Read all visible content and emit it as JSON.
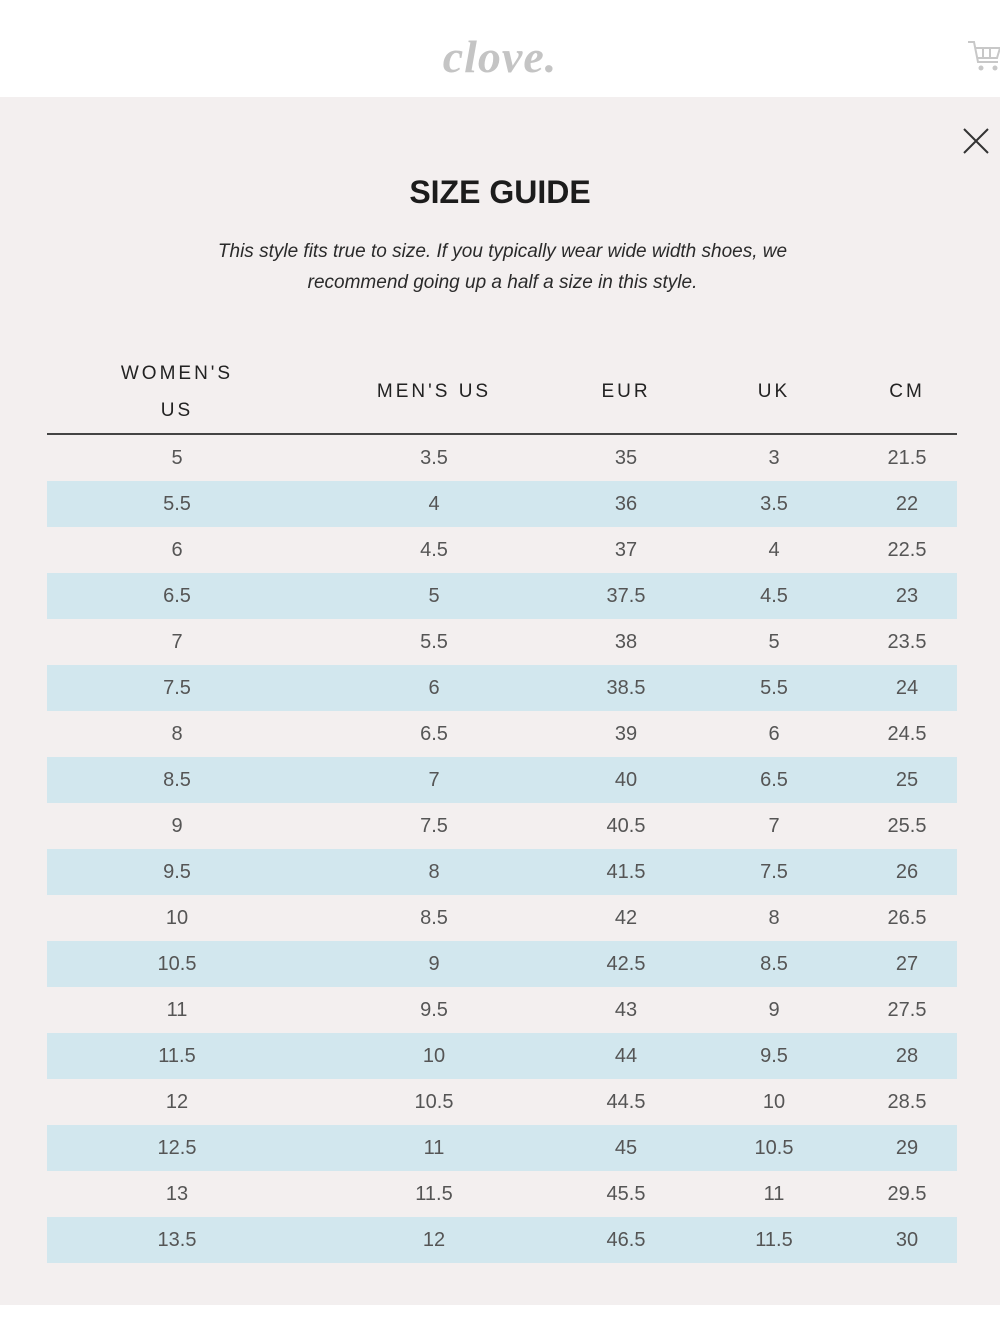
{
  "header": {
    "logo": "clove."
  },
  "modal": {
    "title": "SIZE GUIDE",
    "subtitle": "This style fits true to size. If you typically wear wide width shoes, we recommend going up a half a size in this style.",
    "table": {
      "columns": [
        "WOMEN'S US",
        "MEN'S US",
        "EUR",
        "UK",
        "CM"
      ],
      "rows": [
        [
          "5",
          "3.5",
          "35",
          "3",
          "21.5"
        ],
        [
          "5.5",
          "4",
          "36",
          "3.5",
          "22"
        ],
        [
          "6",
          "4.5",
          "37",
          "4",
          "22.5"
        ],
        [
          "6.5",
          "5",
          "37.5",
          "4.5",
          "23"
        ],
        [
          "7",
          "5.5",
          "38",
          "5",
          "23.5"
        ],
        [
          "7.5",
          "6",
          "38.5",
          "5.5",
          "24"
        ],
        [
          "8",
          "6.5",
          "39",
          "6",
          "24.5"
        ],
        [
          "8.5",
          "7",
          "40",
          "6.5",
          "25"
        ],
        [
          "9",
          "7.5",
          "40.5",
          "7",
          "25.5"
        ],
        [
          "9.5",
          "8",
          "41.5",
          "7.5",
          "26"
        ],
        [
          "10",
          "8.5",
          "42",
          "8",
          "26.5"
        ],
        [
          "10.5",
          "9",
          "42.5",
          "8.5",
          "27"
        ],
        [
          "11",
          "9.5",
          "43",
          "9",
          "27.5"
        ],
        [
          "11.5",
          "10",
          "44",
          "9.5",
          "28"
        ],
        [
          "12",
          "10.5",
          "44.5",
          "10",
          "28.5"
        ],
        [
          "12.5",
          "11",
          "45",
          "10.5",
          "29"
        ],
        [
          "13",
          "11.5",
          "45.5",
          "11",
          "29.5"
        ],
        [
          "13.5",
          "12",
          "46.5",
          "11.5",
          "30"
        ]
      ]
    }
  }
}
